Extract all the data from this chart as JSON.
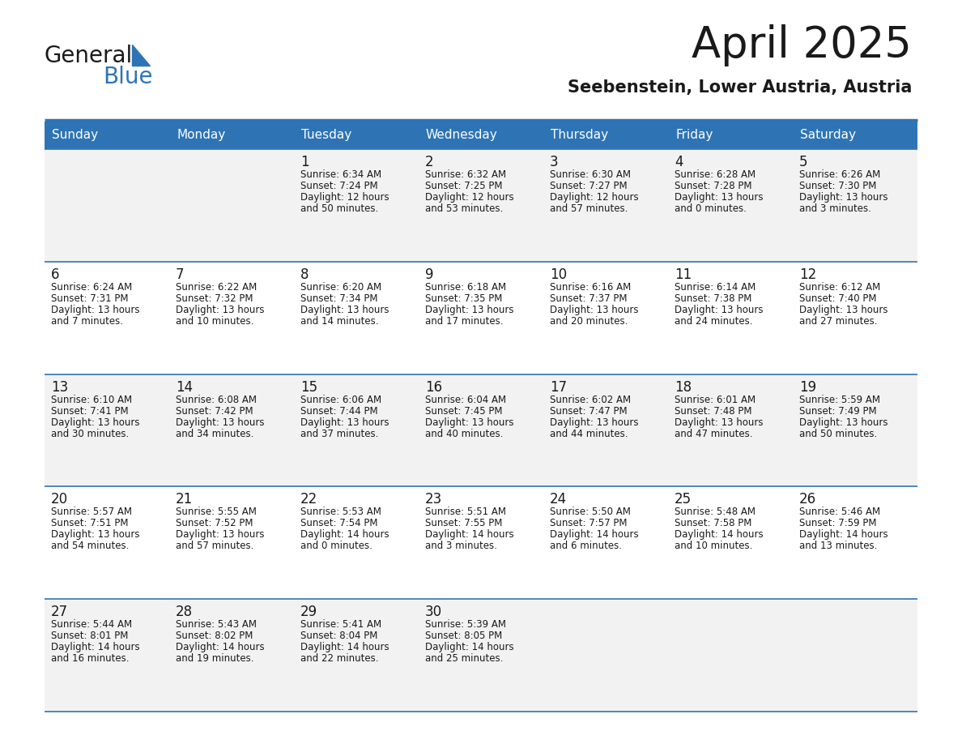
{
  "title": "April 2025",
  "subtitle": "Seebenstein, Lower Austria, Austria",
  "header_bg": "#2E74B5",
  "header_text_color": "#FFFFFF",
  "cell_bg_row0": "#F2F2F2",
  "cell_bg_row1": "#FFFFFF",
  "cell_bg_row2": "#F2F2F2",
  "cell_bg_row3": "#FFFFFF",
  "cell_bg_row4": "#F2F2F2",
  "text_color": "#1A1A1A",
  "line_color": "#2E74B5",
  "day_headers": [
    "Sunday",
    "Monday",
    "Tuesday",
    "Wednesday",
    "Thursday",
    "Friday",
    "Saturday"
  ],
  "weeks": [
    [
      {
        "day": "",
        "info": ""
      },
      {
        "day": "",
        "info": ""
      },
      {
        "day": "1",
        "info": "Sunrise: 6:34 AM\nSunset: 7:24 PM\nDaylight: 12 hours\nand 50 minutes."
      },
      {
        "day": "2",
        "info": "Sunrise: 6:32 AM\nSunset: 7:25 PM\nDaylight: 12 hours\nand 53 minutes."
      },
      {
        "day": "3",
        "info": "Sunrise: 6:30 AM\nSunset: 7:27 PM\nDaylight: 12 hours\nand 57 minutes."
      },
      {
        "day": "4",
        "info": "Sunrise: 6:28 AM\nSunset: 7:28 PM\nDaylight: 13 hours\nand 0 minutes."
      },
      {
        "day": "5",
        "info": "Sunrise: 6:26 AM\nSunset: 7:30 PM\nDaylight: 13 hours\nand 3 minutes."
      }
    ],
    [
      {
        "day": "6",
        "info": "Sunrise: 6:24 AM\nSunset: 7:31 PM\nDaylight: 13 hours\nand 7 minutes."
      },
      {
        "day": "7",
        "info": "Sunrise: 6:22 AM\nSunset: 7:32 PM\nDaylight: 13 hours\nand 10 minutes."
      },
      {
        "day": "8",
        "info": "Sunrise: 6:20 AM\nSunset: 7:34 PM\nDaylight: 13 hours\nand 14 minutes."
      },
      {
        "day": "9",
        "info": "Sunrise: 6:18 AM\nSunset: 7:35 PM\nDaylight: 13 hours\nand 17 minutes."
      },
      {
        "day": "10",
        "info": "Sunrise: 6:16 AM\nSunset: 7:37 PM\nDaylight: 13 hours\nand 20 minutes."
      },
      {
        "day": "11",
        "info": "Sunrise: 6:14 AM\nSunset: 7:38 PM\nDaylight: 13 hours\nand 24 minutes."
      },
      {
        "day": "12",
        "info": "Sunrise: 6:12 AM\nSunset: 7:40 PM\nDaylight: 13 hours\nand 27 minutes."
      }
    ],
    [
      {
        "day": "13",
        "info": "Sunrise: 6:10 AM\nSunset: 7:41 PM\nDaylight: 13 hours\nand 30 minutes."
      },
      {
        "day": "14",
        "info": "Sunrise: 6:08 AM\nSunset: 7:42 PM\nDaylight: 13 hours\nand 34 minutes."
      },
      {
        "day": "15",
        "info": "Sunrise: 6:06 AM\nSunset: 7:44 PM\nDaylight: 13 hours\nand 37 minutes."
      },
      {
        "day": "16",
        "info": "Sunrise: 6:04 AM\nSunset: 7:45 PM\nDaylight: 13 hours\nand 40 minutes."
      },
      {
        "day": "17",
        "info": "Sunrise: 6:02 AM\nSunset: 7:47 PM\nDaylight: 13 hours\nand 44 minutes."
      },
      {
        "day": "18",
        "info": "Sunrise: 6:01 AM\nSunset: 7:48 PM\nDaylight: 13 hours\nand 47 minutes."
      },
      {
        "day": "19",
        "info": "Sunrise: 5:59 AM\nSunset: 7:49 PM\nDaylight: 13 hours\nand 50 minutes."
      }
    ],
    [
      {
        "day": "20",
        "info": "Sunrise: 5:57 AM\nSunset: 7:51 PM\nDaylight: 13 hours\nand 54 minutes."
      },
      {
        "day": "21",
        "info": "Sunrise: 5:55 AM\nSunset: 7:52 PM\nDaylight: 13 hours\nand 57 minutes."
      },
      {
        "day": "22",
        "info": "Sunrise: 5:53 AM\nSunset: 7:54 PM\nDaylight: 14 hours\nand 0 minutes."
      },
      {
        "day": "23",
        "info": "Sunrise: 5:51 AM\nSunset: 7:55 PM\nDaylight: 14 hours\nand 3 minutes."
      },
      {
        "day": "24",
        "info": "Sunrise: 5:50 AM\nSunset: 7:57 PM\nDaylight: 14 hours\nand 6 minutes."
      },
      {
        "day": "25",
        "info": "Sunrise: 5:48 AM\nSunset: 7:58 PM\nDaylight: 14 hours\nand 10 minutes."
      },
      {
        "day": "26",
        "info": "Sunrise: 5:46 AM\nSunset: 7:59 PM\nDaylight: 14 hours\nand 13 minutes."
      }
    ],
    [
      {
        "day": "27",
        "info": "Sunrise: 5:44 AM\nSunset: 8:01 PM\nDaylight: 14 hours\nand 16 minutes."
      },
      {
        "day": "28",
        "info": "Sunrise: 5:43 AM\nSunset: 8:02 PM\nDaylight: 14 hours\nand 19 minutes."
      },
      {
        "day": "29",
        "info": "Sunrise: 5:41 AM\nSunset: 8:04 PM\nDaylight: 14 hours\nand 22 minutes."
      },
      {
        "day": "30",
        "info": "Sunrise: 5:39 AM\nSunset: 8:05 PM\nDaylight: 14 hours\nand 25 minutes."
      },
      {
        "day": "",
        "info": ""
      },
      {
        "day": "",
        "info": ""
      },
      {
        "day": "",
        "info": ""
      }
    ]
  ],
  "fig_width": 11.88,
  "fig_height": 9.18,
  "dpi": 100
}
